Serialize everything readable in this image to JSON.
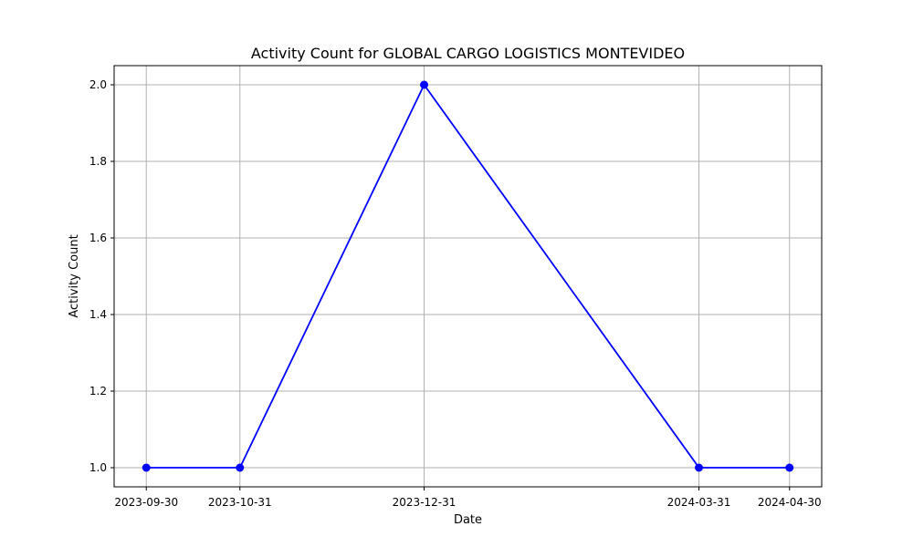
{
  "chart_data": {
    "type": "line",
    "title": "Activity Count for GLOBAL CARGO LOGISTICS MONTEVIDEO",
    "xlabel": "Date",
    "ylabel": "Activity Count",
    "categories": [
      "2023-09-30",
      "2023-10-31",
      "2023-12-31",
      "2024-03-31",
      "2024-04-30"
    ],
    "series": [
      {
        "values": [
          1,
          1,
          2,
          1,
          1
        ]
      }
    ],
    "yticks": [
      "1.0",
      "1.2",
      "1.4",
      "1.6",
      "1.8",
      "2.0"
    ],
    "ylim": [
      0.95,
      2.05
    ],
    "grid": true,
    "line_color": "#0000ff",
    "marker": "circle"
  }
}
